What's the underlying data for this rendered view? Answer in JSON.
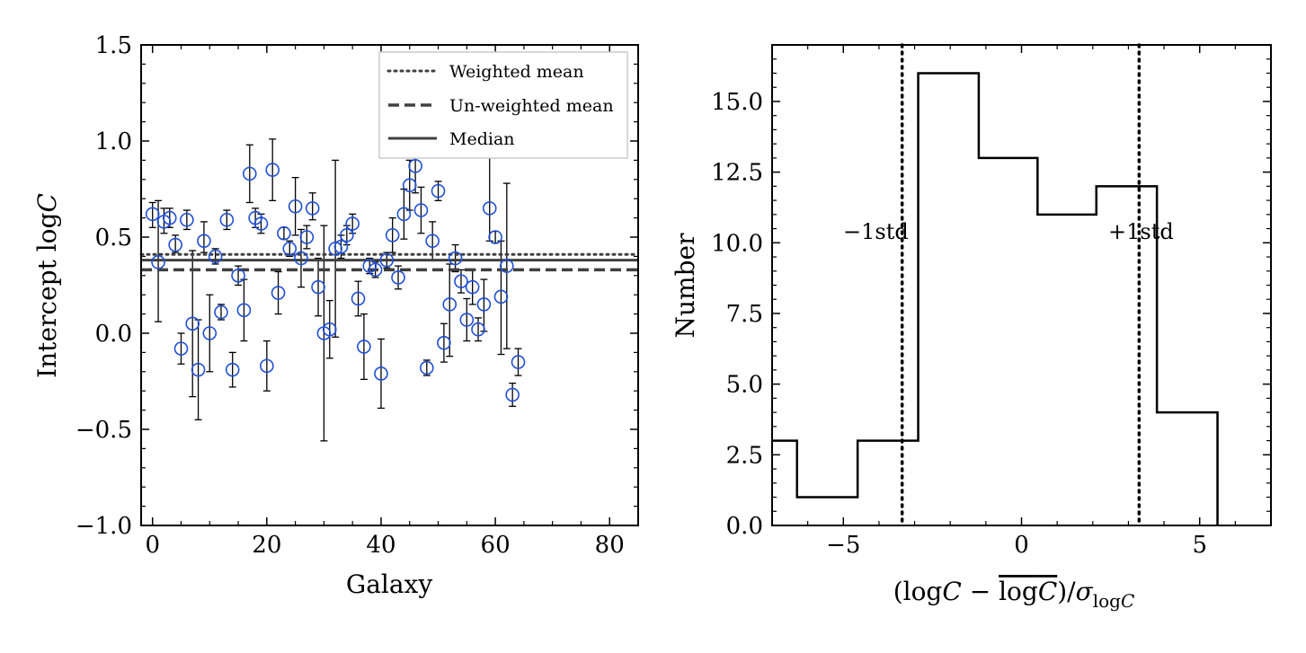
{
  "chart_data": [
    {
      "type": "scatter",
      "subtype": "errorbar",
      "xlabel": "Galaxy",
      "ylabel": "Intercept log",
      "ylabel_italic": "C",
      "xlim": [
        -2,
        85
      ],
      "ylim": [
        -1.0,
        1.5
      ],
      "xticks": [
        0,
        20,
        40,
        60,
        80
      ],
      "xtick_labels": [
        "0",
        "20",
        "40",
        "60",
        "80"
      ],
      "yticks": [
        -1.0,
        -0.5,
        0.0,
        0.5,
        1.0,
        1.5
      ],
      "ytick_labels": [
        "−1.0",
        "−0.5",
        "0.0",
        "0.5",
        "1.0",
        "1.5"
      ],
      "marker_color": "#1f4fd6",
      "points": [
        {
          "x": 0,
          "y": 0.62,
          "lo": 0.55,
          "hi": 0.68
        },
        {
          "x": 1,
          "y": 0.37,
          "lo": 0.06,
          "hi": 0.69
        },
        {
          "x": 2,
          "y": 0.58,
          "lo": 0.52,
          "hi": 0.65
        },
        {
          "x": 3,
          "y": 0.6,
          "lo": 0.55,
          "hi": 0.65
        },
        {
          "x": 4,
          "y": 0.46,
          "lo": 0.42,
          "hi": 0.51
        },
        {
          "x": 5,
          "y": -0.08,
          "lo": -0.16,
          "hi": 0.0
        },
        {
          "x": 6,
          "y": 0.59,
          "lo": 0.54,
          "hi": 0.64
        },
        {
          "x": 7,
          "y": 0.05,
          "lo": -0.33,
          "hi": 0.43
        },
        {
          "x": 8,
          "y": -0.19,
          "lo": -0.45,
          "hi": 0.07
        },
        {
          "x": 9,
          "y": 0.48,
          "lo": 0.42,
          "hi": 0.58
        },
        {
          "x": 10,
          "y": 0.0,
          "lo": -0.2,
          "hi": 0.2
        },
        {
          "x": 11,
          "y": 0.4,
          "lo": 0.36,
          "hi": 0.44
        },
        {
          "x": 12,
          "y": 0.11,
          "lo": 0.07,
          "hi": 0.15
        },
        {
          "x": 13,
          "y": 0.59,
          "lo": 0.54,
          "hi": 0.64
        },
        {
          "x": 14,
          "y": -0.19,
          "lo": -0.28,
          "hi": -0.1
        },
        {
          "x": 15,
          "y": 0.3,
          "lo": 0.25,
          "hi": 0.35
        },
        {
          "x": 16,
          "y": 0.12,
          "lo": -0.04,
          "hi": 0.28
        },
        {
          "x": 17,
          "y": 0.83,
          "lo": 0.68,
          "hi": 0.98
        },
        {
          "x": 18,
          "y": 0.6,
          "lo": 0.55,
          "hi": 0.65
        },
        {
          "x": 19,
          "y": 0.57,
          "lo": 0.52,
          "hi": 0.62
        },
        {
          "x": 20,
          "y": -0.17,
          "lo": -0.3,
          "hi": -0.04
        },
        {
          "x": 21,
          "y": 0.85,
          "lo": 0.69,
          "hi": 1.01
        },
        {
          "x": 22,
          "y": 0.21,
          "lo": 0.1,
          "hi": 0.32
        },
        {
          "x": 23,
          "y": 0.52,
          "lo": 0.49,
          "hi": 0.55
        },
        {
          "x": 24,
          "y": 0.44,
          "lo": 0.4,
          "hi": 0.48
        },
        {
          "x": 25,
          "y": 0.66,
          "lo": 0.51,
          "hi": 0.81
        },
        {
          "x": 26,
          "y": 0.39,
          "lo": 0.24,
          "hi": 0.54
        },
        {
          "x": 27,
          "y": 0.5,
          "lo": 0.44,
          "hi": 0.56
        },
        {
          "x": 28,
          "y": 0.65,
          "lo": 0.59,
          "hi": 0.73
        },
        {
          "x": 29,
          "y": 0.24,
          "lo": 0.09,
          "hi": 0.39
        },
        {
          "x": 30,
          "y": 0.0,
          "lo": -0.56,
          "hi": 0.56
        },
        {
          "x": 31,
          "y": 0.02,
          "lo": -0.13,
          "hi": 0.17
        },
        {
          "x": 32,
          "y": 0.44,
          "lo": -0.02,
          "hi": 0.9
        },
        {
          "x": 33,
          "y": 0.45,
          "lo": 0.39,
          "hi": 0.51
        },
        {
          "x": 34,
          "y": 0.51,
          "lo": 0.46,
          "hi": 0.56
        },
        {
          "x": 35,
          "y": 0.57,
          "lo": 0.52,
          "hi": 0.62
        },
        {
          "x": 36,
          "y": 0.18,
          "lo": 0.09,
          "hi": 0.27
        },
        {
          "x": 37,
          "y": -0.07,
          "lo": -0.24,
          "hi": 0.1
        },
        {
          "x": 38,
          "y": 0.35,
          "lo": 0.31,
          "hi": 0.39
        },
        {
          "x": 39,
          "y": 0.33,
          "lo": 0.29,
          "hi": 0.37
        },
        {
          "x": 40,
          "y": -0.21,
          "lo": -0.39,
          "hi": -0.03
        },
        {
          "x": 41,
          "y": 0.38,
          "lo": 0.34,
          "hi": 0.42
        },
        {
          "x": 42,
          "y": 0.51,
          "lo": 0.42,
          "hi": 0.6
        },
        {
          "x": 43,
          "y": 0.29,
          "lo": 0.23,
          "hi": 0.35
        },
        {
          "x": 44,
          "y": 0.62,
          "lo": 0.49,
          "hi": 0.75
        },
        {
          "x": 45,
          "y": 0.77,
          "lo": 0.64,
          "hi": 0.9
        },
        {
          "x": 46,
          "y": 0.87,
          "lo": 0.73,
          "hi": 0.95
        },
        {
          "x": 47,
          "y": 0.64,
          "lo": 0.52,
          "hi": 0.76
        },
        {
          "x": 48,
          "y": -0.18,
          "lo": -0.22,
          "hi": -0.14
        },
        {
          "x": 49,
          "y": 0.48,
          "lo": 0.38,
          "hi": 0.58
        },
        {
          "x": 50,
          "y": 0.74,
          "lo": 0.69,
          "hi": 0.79
        },
        {
          "x": 51,
          "y": -0.05,
          "lo": -0.15,
          "hi": 0.05
        },
        {
          "x": 52,
          "y": 0.15,
          "lo": -0.12,
          "hi": 0.36
        },
        {
          "x": 53,
          "y": 0.39,
          "lo": 0.32,
          "hi": 0.46
        },
        {
          "x": 54,
          "y": 0.27,
          "lo": 0.21,
          "hi": 0.33
        },
        {
          "x": 55,
          "y": 0.07,
          "lo": -0.04,
          "hi": 0.18
        },
        {
          "x": 56,
          "y": 0.24,
          "lo": 0.15,
          "hi": 0.33
        },
        {
          "x": 57,
          "y": 0.02,
          "lo": -0.04,
          "hi": 0.08
        },
        {
          "x": 58,
          "y": 0.15,
          "lo": 0.01,
          "hi": 0.28
        },
        {
          "x": 59,
          "y": 0.65,
          "lo": 0.48,
          "hi": 0.95
        },
        {
          "x": 60,
          "y": 0.5,
          "lo": 0.47,
          "hi": 0.53
        },
        {
          "x": 61,
          "y": 0.19,
          "lo": -0.11,
          "hi": 0.48
        },
        {
          "x": 62,
          "y": 0.35,
          "lo": -0.08,
          "hi": 0.78
        },
        {
          "x": 63,
          "y": -0.32,
          "lo": -0.38,
          "hi": -0.26
        },
        {
          "x": 64,
          "y": -0.15,
          "lo": -0.22,
          "hi": -0.08
        }
      ],
      "hlines": [
        {
          "name": "Weighted mean",
          "y": 0.41,
          "style": "dotted"
        },
        {
          "name": "Un-weighted mean",
          "y": 0.33,
          "style": "dashed"
        },
        {
          "name": "Median",
          "y": 0.38,
          "style": "solid"
        }
      ],
      "legend": [
        "Weighted mean",
        "Un-weighted mean",
        "Median"
      ],
      "legend_location": "top-right"
    },
    {
      "type": "histogram",
      "xlabel": "(logC − logC)/σ logC",
      "ylabel": "Number",
      "xlim": [
        -7.0,
        7.0
      ],
      "ylim": [
        0.0,
        17.0
      ],
      "xticks": [
        -5,
        0,
        5
      ],
      "xtick_labels": [
        "−5",
        "0",
        "5"
      ],
      "yticks": [
        0.0,
        2.5,
        5.0,
        7.5,
        10.0,
        12.5,
        15.0
      ],
      "ytick_labels": [
        "0.0",
        "2.5",
        "5.0",
        "7.5",
        "10.0",
        "12.5",
        "15.0"
      ],
      "bin_edges": [
        -7.0,
        -6.3,
        -4.6,
        -2.9,
        -1.2,
        0.45,
        2.1,
        3.8,
        5.5
      ],
      "counts": [
        3,
        1,
        3,
        16,
        13,
        11,
        12,
        4
      ],
      "vlines": [
        {
          "x": -3.35,
          "label": "−1std"
        },
        {
          "x": 3.3,
          "label": "+1std"
        }
      ]
    }
  ]
}
